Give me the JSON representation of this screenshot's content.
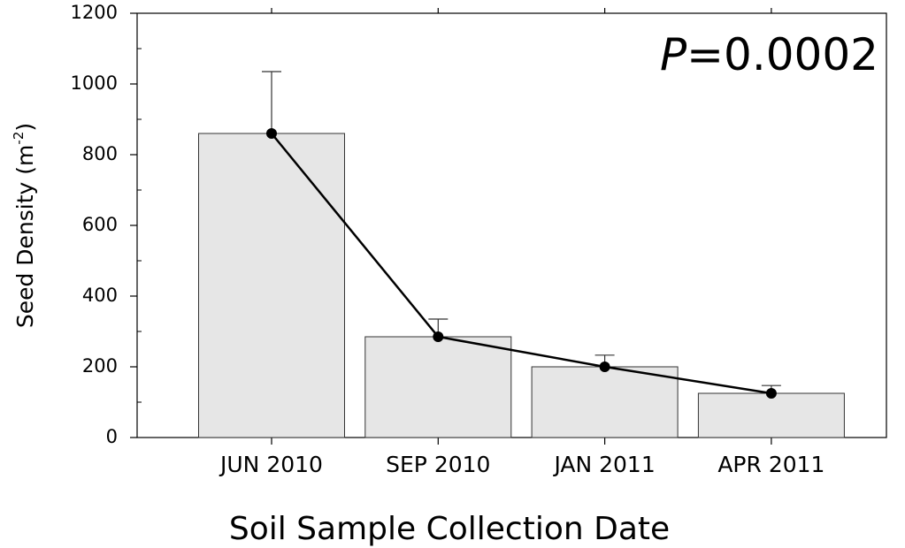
{
  "chart_data": {
    "type": "bar",
    "ylabel": {
      "text": "Seed Density (m",
      "superscript": "-2",
      "suffix": ")"
    },
    "xlabel": "Soil Sample Collection Date",
    "annotation": {
      "italic": "P",
      "text": "=0.0002"
    },
    "categories": [
      "JUN 2010",
      "SEP 2010",
      "JAN 2011",
      "APR 2011"
    ],
    "values": [
      860,
      285,
      200,
      125
    ],
    "errors": [
      175,
      50,
      33,
      22
    ],
    "color": "#e6e6e6",
    "line": true,
    "line_color": "#000000",
    "ylim": [
      0,
      1200
    ],
    "yticks": [
      0,
      200,
      400,
      600,
      800,
      1000,
      1200
    ]
  }
}
